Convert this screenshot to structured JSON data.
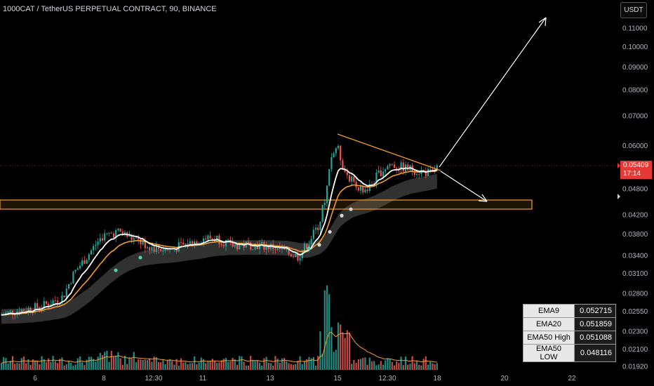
{
  "header": {
    "symbol_title": "1000CAT / TetherUS PERPETUAL CONTRACT, 90, BINANCE",
    "currency": "USDT"
  },
  "price_tag": {
    "price": "0.05409",
    "countdown": "17:14"
  },
  "ema_table": [
    {
      "label": "EMA9",
      "value": "0.052715"
    },
    {
      "label": "EMA20",
      "value": "0.051859"
    },
    {
      "label": "EMA50 High",
      "value": "0.051088"
    },
    {
      "label": "EMA50 LOW",
      "value": "0.048116"
    }
  ],
  "colors": {
    "background": "#000000",
    "bull": "#26a69a",
    "bear": "#ef5350",
    "ema9": "#ffffff",
    "ema20": "#f59d2a",
    "trendline": "#f59d2a",
    "support_zone": "#f59d2a",
    "price_tag": "#e53935"
  },
  "chart_data": {
    "type": "candlestick",
    "y_scale": "log",
    "y_ticks": [
      "0.11000",
      "0.10000",
      "0.09000",
      "0.08000",
      "0.07000",
      "0.06000",
      "0.04800",
      "0.04200",
      "0.03800",
      "0.03400",
      "0.03100",
      "0.02800",
      "0.02550",
      "0.02300",
      "0.02100",
      "0.01920"
    ],
    "x_ticks": [
      "6",
      "8",
      "12:30",
      "11",
      "13",
      "15",
      "12:30",
      "18",
      "20",
      "22"
    ],
    "last_price": 0.05409,
    "support_zone": [
      0.0435,
      0.0455
    ],
    "trendline": {
      "start": {
        "x_label": "15",
        "y": 0.064
      },
      "end": {
        "x_label": "18",
        "y": 0.0548
      }
    },
    "ema_values": {
      "EMA9": 0.052715,
      "EMA20": 0.051859,
      "EMA50 High": 0.051088,
      "EMA50 LOW": 0.048116
    }
  }
}
